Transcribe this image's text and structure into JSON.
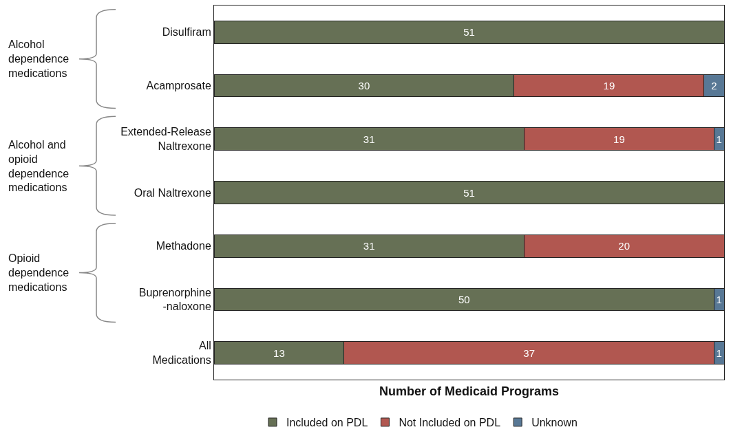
{
  "chart_data": {
    "type": "bar",
    "orientation": "horizontal",
    "stacked": true,
    "data_labels": true,
    "grid": false,
    "legend": "bottom",
    "tick_labels": "y",
    "xlabel": "Number of Medicaid Programs",
    "categories": [
      "Disulfiram",
      "Acamprosate",
      "Extended-Release\nNaltrexone",
      "Oral Naltrexone",
      "Methadone",
      "Buprenorphine\n-naloxone",
      "All\nMedications"
    ],
    "series": [
      {
        "name": "Included on PDL",
        "color": "#667055",
        "values": [
          51,
          30,
          31,
          51,
          31,
          50,
          13
        ]
      },
      {
        "name": "Not Included on PDL",
        "color": "#b15750",
        "values": [
          null,
          19,
          19,
          null,
          20,
          null,
          37
        ]
      },
      {
        "name": "Unknown",
        "color": "#587895",
        "values": [
          null,
          2,
          1,
          null,
          null,
          1,
          1
        ]
      }
    ],
    "annotations": [
      "Alcohol\ndependence\nmedications",
      "Alcohol and\nopioid\ndependence\nmedications",
      "Opioid\ndependence\nmedications"
    ]
  }
}
